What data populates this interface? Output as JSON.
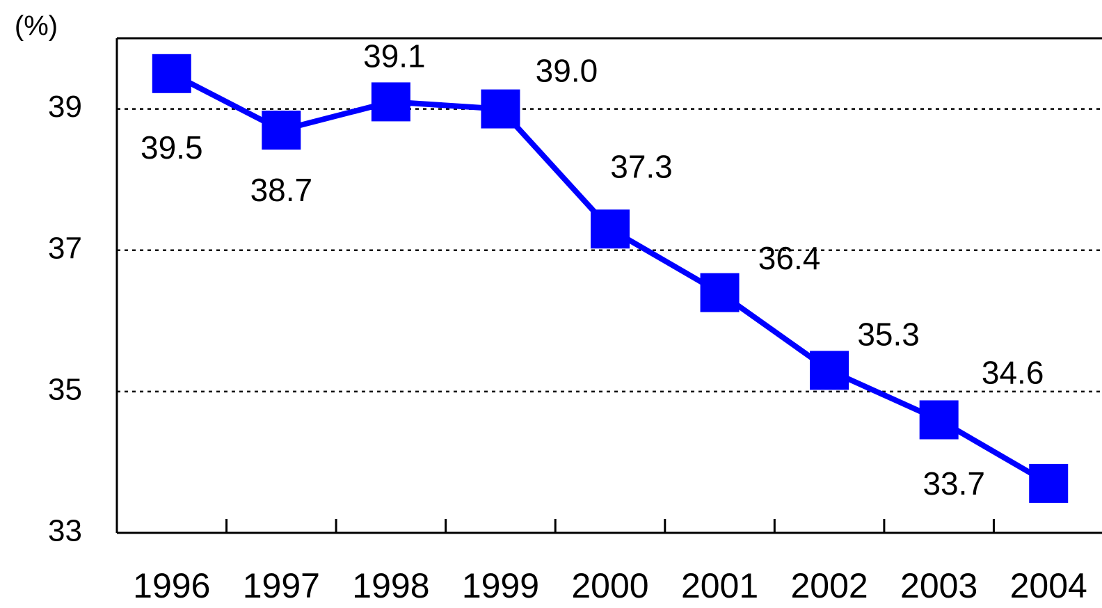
{
  "chart_data": {
    "type": "line",
    "y_label": "(%)",
    "categories": [
      "1996",
      "1997",
      "1998",
      "1999",
      "2000",
      "2001",
      "2002",
      "2003",
      "2004"
    ],
    "series": [
      {
        "color": "#0000ff",
        "values": [
          39.5,
          38.7,
          39.1,
          39.0,
          37.3,
          36.4,
          35.3,
          34.6,
          33.7
        ],
        "value_labels": [
          "39.5",
          "38.7",
          "39.1",
          "39.0",
          "37.3",
          "36.4",
          "35.3",
          "34.6",
          "33.7"
        ]
      }
    ],
    "ylim": [
      33,
      40
    ],
    "yticks": [
      33,
      35,
      37,
      39
    ],
    "grid": true
  }
}
